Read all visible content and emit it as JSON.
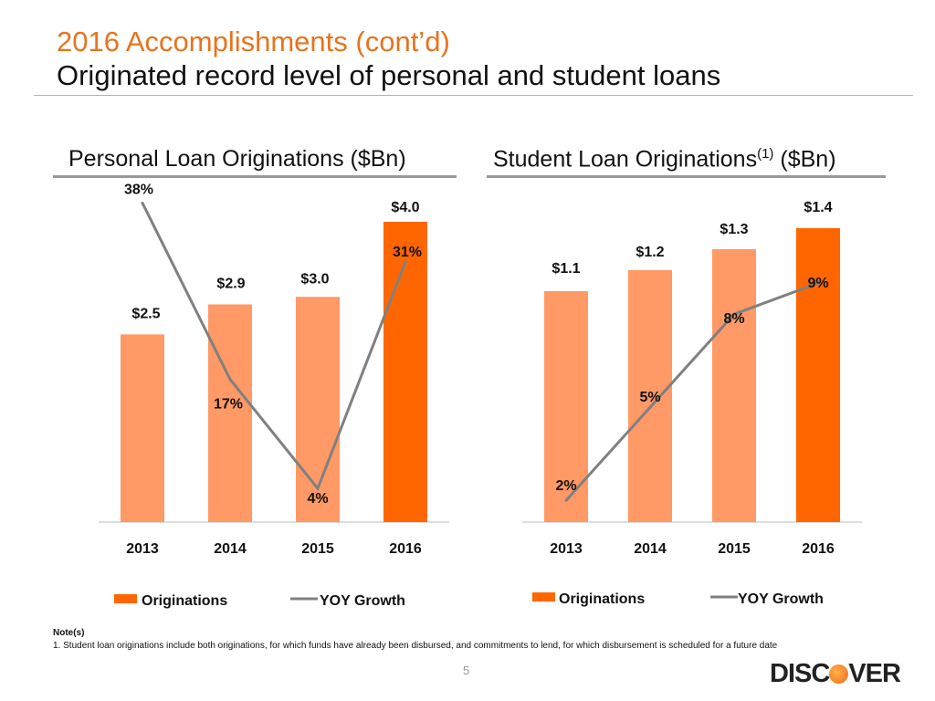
{
  "header": {
    "title": "2016 Accomplishments (cont’d)",
    "subtitle": "Originated record level of personal and student loans"
  },
  "colors": {
    "bar": "#FF9966",
    "bar_highlight": "#FF6600",
    "line": "#808080",
    "title": "#E8731E"
  },
  "chart_data": [
    {
      "type": "bar",
      "title": "Personal Loan Originations ($Bn)",
      "categories": [
        "2013",
        "2014",
        "2015",
        "2016"
      ],
      "series": [
        {
          "name": "Originations",
          "type": "bar",
          "values": [
            2.5,
            2.9,
            3.0,
            4.0
          ],
          "labels": [
            "$2.5",
            "$2.9",
            "$3.0",
            "$4.0"
          ]
        },
        {
          "name": "YOY Growth",
          "type": "line",
          "values": [
            38,
            17,
            4,
            31
          ],
          "labels": [
            "38%",
            "17%",
            "4%",
            "31%"
          ]
        }
      ],
      "highlight_category": "2016",
      "legend": "bottom"
    },
    {
      "type": "bar",
      "title": "Student Loan Originations",
      "title_sup": "(1)",
      "title_suffix": "($Bn)",
      "categories": [
        "2013",
        "2014",
        "2015",
        "2016"
      ],
      "series": [
        {
          "name": "Originations",
          "type": "bar",
          "values": [
            1.1,
            1.2,
            1.3,
            1.4
          ],
          "labels": [
            "$1.1",
            "$1.2",
            "$1.3",
            "$1.4"
          ]
        },
        {
          "name": "YOY Growth",
          "type": "line",
          "values": [
            2,
            5,
            8,
            9
          ],
          "labels": [
            "2%",
            "5%",
            "8%",
            "9%"
          ]
        }
      ],
      "highlight_category": "2016",
      "legend": "bottom"
    }
  ],
  "notes": {
    "heading": "Note(s)",
    "text": "1. Student loan originations include both originations, for which funds have already been disbursed, and commitments to lend, for which disbursement is scheduled for a future date"
  },
  "page_number": "5",
  "logo": "DISCOVER"
}
